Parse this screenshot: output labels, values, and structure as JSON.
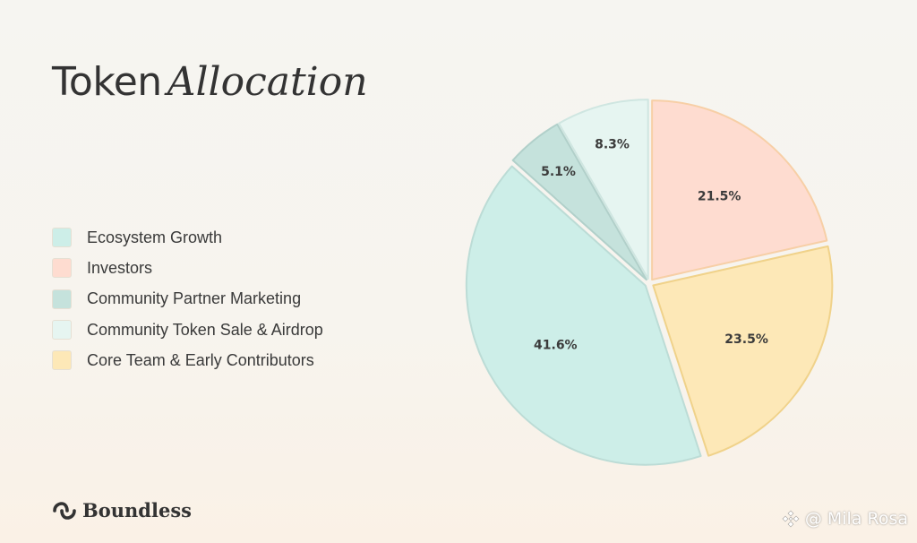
{
  "title": {
    "main": "Token",
    "accent": "Allocation"
  },
  "brand": {
    "name": "Boundless",
    "logo_icon": "boundless-logo-icon"
  },
  "watermark": {
    "text": "@ Mila Rosa",
    "icon": "binance-logo-icon"
  },
  "chart_data": {
    "type": "pie",
    "title": "Token Allocation",
    "legend_position": "left",
    "slices": [
      {
        "label": "Ecosystem Growth",
        "value": 41.6,
        "display": "41.6%",
        "color": "#cdeee8"
      },
      {
        "label": "Investors",
        "value": 21.5,
        "display": "21.5%",
        "color": "#fedcd0"
      },
      {
        "label": "Community Partner Marketing",
        "value": 5.1,
        "display": "5.1%",
        "color": "#c5e2dc"
      },
      {
        "label": "Community Token Sale & Airdrop",
        "value": 8.3,
        "display": "8.3%",
        "color": "#e6f5f1"
      },
      {
        "label": "Core Team & Early Contributors",
        "value": 23.5,
        "display": "23.5%",
        "color": "#fde8b7"
      }
    ]
  }
}
